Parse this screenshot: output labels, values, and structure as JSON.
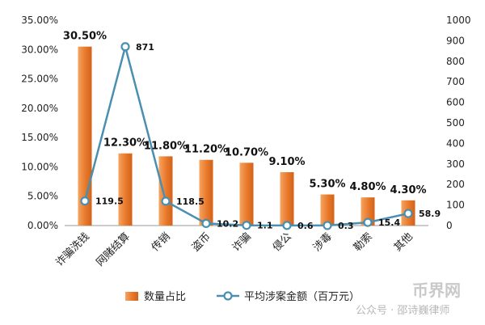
{
  "chart_data": {
    "type": "bar",
    "categories": [
      "诈骗洗钱",
      "网赌结算",
      "传销",
      "盗币",
      "诈骗",
      "侵公",
      "涉毒",
      "勒索",
      "其他"
    ],
    "series": [
      {
        "name": "数量占比",
        "type": "bar",
        "axis": "left",
        "values": [
          30.5,
          12.3,
          11.8,
          11.2,
          10.7,
          9.1,
          5.3,
          4.8,
          4.3
        ],
        "labels": [
          "30.50%",
          "12.30%",
          "11.80%",
          "11.20%",
          "10.70%",
          "9.10%",
          "5.30%",
          "4.80%",
          "4.30%"
        ],
        "color": "#e8782a"
      },
      {
        "name": "平均涉案金额（百万元）",
        "type": "line",
        "axis": "right",
        "values": [
          119.5,
          871,
          118.5,
          10.2,
          1.1,
          0.6,
          0.3,
          15.4,
          58.9
        ],
        "labels": [
          "119.5",
          "871",
          "118.5",
          "10.2",
          "1.1",
          "0.6",
          "0.3",
          "15.4",
          "58.9"
        ],
        "color": "#4a8fb0"
      }
    ],
    "y_left": {
      "ylim": [
        0,
        35
      ],
      "ticks": [
        "0.00%",
        "5.00%",
        "10.00%",
        "15.00%",
        "20.00%",
        "25.00%",
        "30.00%",
        "35.00%"
      ]
    },
    "y_right": {
      "ylim": [
        0,
        1000
      ],
      "ticks": [
        "0",
        "100",
        "200",
        "300",
        "400",
        "500",
        "600",
        "700",
        "800",
        "900",
        "1000"
      ]
    },
    "grid": false,
    "legend_position": "bottom"
  },
  "watermark": {
    "logo": "币界网",
    "text": "公众号 · 邵诗巍律师"
  }
}
